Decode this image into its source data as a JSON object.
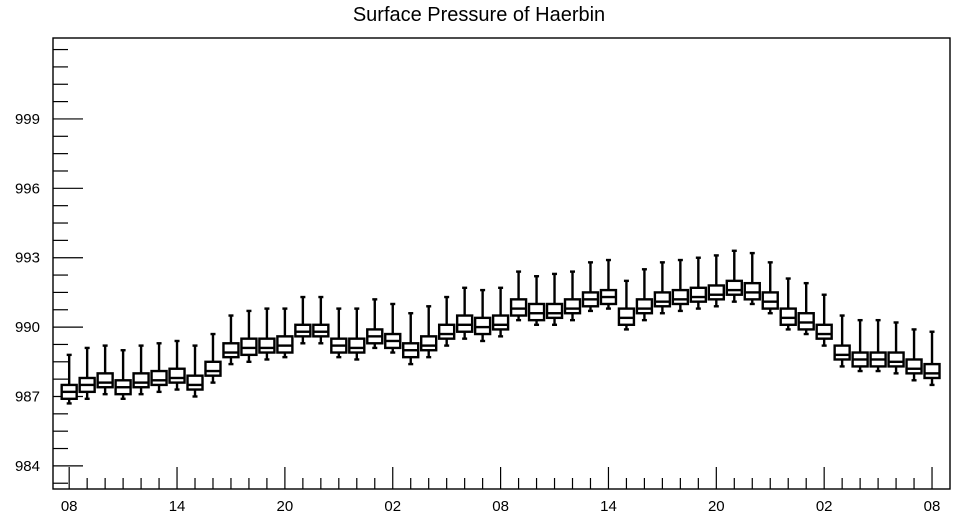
{
  "chart_data": {
    "type": "box",
    "title": "Surface Pressure of Haerbin",
    "xlabel": "",
    "ylabel": "",
    "ylim": [
      983,
      1002.5
    ],
    "y_ticks": [
      984,
      987,
      990,
      993,
      996,
      999
    ],
    "x_tick_labels": [
      "08",
      "14",
      "20",
      "02",
      "08",
      "14",
      "20",
      "02",
      "08"
    ],
    "x_tick_hours": [
      0,
      6,
      12,
      18,
      24,
      30,
      36,
      42,
      48
    ],
    "x_range_hours": [
      -0.9,
      49.0
    ],
    "grid": false,
    "legend": "none",
    "color": "#000000",
    "series": [
      {
        "values": [
          {
            "x": 0,
            "whisker_high": 988.8,
            "q3": 987.5,
            "median": 987.2,
            "q1": 986.9,
            "whisker_low": 986.7
          },
          {
            "x": 1,
            "whisker_high": 989.1,
            "q3": 987.8,
            "median": 987.5,
            "q1": 987.2,
            "whisker_low": 986.9
          },
          {
            "x": 2,
            "whisker_high": 989.2,
            "q3": 988.0,
            "median": 987.6,
            "q1": 987.4,
            "whisker_low": 987.1
          },
          {
            "x": 3,
            "whisker_high": 989.0,
            "q3": 987.7,
            "median": 987.4,
            "q1": 987.1,
            "whisker_low": 986.9
          },
          {
            "x": 4,
            "whisker_high": 989.2,
            "q3": 988.0,
            "median": 987.6,
            "q1": 987.4,
            "whisker_low": 987.1
          },
          {
            "x": 5,
            "whisker_high": 989.3,
            "q3": 988.1,
            "median": 987.7,
            "q1": 987.5,
            "whisker_low": 987.2
          },
          {
            "x": 6,
            "whisker_high": 989.4,
            "q3": 988.2,
            "median": 987.8,
            "q1": 987.6,
            "whisker_low": 987.3
          },
          {
            "x": 7,
            "whisker_high": 989.2,
            "q3": 987.9,
            "median": 987.5,
            "q1": 987.3,
            "whisker_low": 987.0
          },
          {
            "x": 8,
            "whisker_high": 989.7,
            "q3": 988.5,
            "median": 988.1,
            "q1": 987.9,
            "whisker_low": 987.6
          },
          {
            "x": 9,
            "whisker_high": 990.5,
            "q3": 989.3,
            "median": 988.9,
            "q1": 988.7,
            "whisker_low": 988.4
          },
          {
            "x": 10,
            "whisker_high": 990.7,
            "q3": 989.5,
            "median": 989.1,
            "q1": 988.8,
            "whisker_low": 988.5
          },
          {
            "x": 11,
            "whisker_high": 990.8,
            "q3": 989.5,
            "median": 989.1,
            "q1": 988.9,
            "whisker_low": 988.6
          },
          {
            "x": 12,
            "whisker_high": 990.8,
            "q3": 989.6,
            "median": 989.2,
            "q1": 988.9,
            "whisker_low": 988.7
          },
          {
            "x": 13,
            "whisker_high": 991.3,
            "q3": 990.1,
            "median": 989.8,
            "q1": 989.6,
            "whisker_low": 989.3
          },
          {
            "x": 14,
            "whisker_high": 991.3,
            "q3": 990.1,
            "median": 989.8,
            "q1": 989.6,
            "whisker_low": 989.3
          },
          {
            "x": 15,
            "whisker_high": 990.8,
            "q3": 989.5,
            "median": 989.2,
            "q1": 988.9,
            "whisker_low": 988.7
          },
          {
            "x": 16,
            "whisker_high": 990.8,
            "q3": 989.5,
            "median": 989.1,
            "q1": 988.9,
            "whisker_low": 988.6
          },
          {
            "x": 17,
            "whisker_high": 991.2,
            "q3": 989.9,
            "median": 989.6,
            "q1": 989.3,
            "whisker_low": 989.1
          },
          {
            "x": 18,
            "whisker_high": 991.0,
            "q3": 989.7,
            "median": 989.4,
            "q1": 989.1,
            "whisker_low": 988.9
          },
          {
            "x": 19,
            "whisker_high": 990.6,
            "q3": 989.3,
            "median": 989.0,
            "q1": 988.7,
            "whisker_low": 988.4
          },
          {
            "x": 20,
            "whisker_high": 990.9,
            "q3": 989.6,
            "median": 989.2,
            "q1": 989.0,
            "whisker_low": 988.7
          },
          {
            "x": 21,
            "whisker_high": 991.3,
            "q3": 990.1,
            "median": 989.7,
            "q1": 989.5,
            "whisker_low": 989.2
          },
          {
            "x": 22,
            "whisker_high": 991.7,
            "q3": 990.5,
            "median": 990.1,
            "q1": 989.8,
            "whisker_low": 989.5
          },
          {
            "x": 23,
            "whisker_high": 991.6,
            "q3": 990.4,
            "median": 990.0,
            "q1": 989.7,
            "whisker_low": 989.4
          },
          {
            "x": 24,
            "whisker_high": 991.7,
            "q3": 990.5,
            "median": 990.1,
            "q1": 989.9,
            "whisker_low": 989.6
          },
          {
            "x": 25,
            "whisker_high": 992.4,
            "q3": 991.2,
            "median": 990.8,
            "q1": 990.5,
            "whisker_low": 990.3
          },
          {
            "x": 26,
            "whisker_high": 992.2,
            "q3": 991.0,
            "median": 990.6,
            "q1": 990.3,
            "whisker_low": 990.1
          },
          {
            "x": 27,
            "whisker_high": 992.3,
            "q3": 991.0,
            "median": 990.6,
            "q1": 990.4,
            "whisker_low": 990.1
          },
          {
            "x": 28,
            "whisker_high": 992.4,
            "q3": 991.2,
            "median": 990.8,
            "q1": 990.6,
            "whisker_low": 990.3
          },
          {
            "x": 29,
            "whisker_high": 992.8,
            "q3": 991.5,
            "median": 991.2,
            "q1": 990.9,
            "whisker_low": 990.7
          },
          {
            "x": 30,
            "whisker_high": 992.9,
            "q3": 991.6,
            "median": 991.3,
            "q1": 991.0,
            "whisker_low": 990.8
          },
          {
            "x": 31,
            "whisker_high": 992.0,
            "q3": 990.8,
            "median": 990.4,
            "q1": 990.1,
            "whisker_low": 989.9
          },
          {
            "x": 32,
            "whisker_high": 992.5,
            "q3": 991.2,
            "median": 990.8,
            "q1": 990.6,
            "whisker_low": 990.3
          },
          {
            "x": 33,
            "whisker_high": 992.8,
            "q3": 991.5,
            "median": 991.1,
            "q1": 990.9,
            "whisker_low": 990.6
          },
          {
            "x": 34,
            "whisker_high": 992.9,
            "q3": 991.6,
            "median": 991.2,
            "q1": 991.0,
            "whisker_low": 990.7
          },
          {
            "x": 35,
            "whisker_high": 993.0,
            "q3": 991.7,
            "median": 991.3,
            "q1": 991.1,
            "whisker_low": 990.8
          },
          {
            "x": 36,
            "whisker_high": 993.1,
            "q3": 991.8,
            "median": 991.4,
            "q1": 991.2,
            "whisker_low": 990.9
          },
          {
            "x": 37,
            "whisker_high": 993.3,
            "q3": 992.0,
            "median": 991.6,
            "q1": 991.4,
            "whisker_low": 991.1
          },
          {
            "x": 38,
            "whisker_high": 993.2,
            "q3": 991.9,
            "median": 991.5,
            "q1": 991.2,
            "whisker_low": 991.0
          },
          {
            "x": 39,
            "whisker_high": 992.8,
            "q3": 991.5,
            "median": 991.1,
            "q1": 990.8,
            "whisker_low": 990.6
          },
          {
            "x": 40,
            "whisker_high": 992.1,
            "q3": 990.8,
            "median": 990.4,
            "q1": 990.1,
            "whisker_low": 989.9
          },
          {
            "x": 41,
            "whisker_high": 991.9,
            "q3": 990.6,
            "median": 990.2,
            "q1": 989.9,
            "whisker_low": 989.7
          },
          {
            "x": 42,
            "whisker_high": 991.4,
            "q3": 990.1,
            "median": 989.7,
            "q1": 989.5,
            "whisker_low": 989.2
          },
          {
            "x": 43,
            "whisker_high": 990.5,
            "q3": 989.2,
            "median": 988.8,
            "q1": 988.6,
            "whisker_low": 988.3
          },
          {
            "x": 44,
            "whisker_high": 990.3,
            "q3": 988.9,
            "median": 988.6,
            "q1": 988.3,
            "whisker_low": 988.1
          },
          {
            "x": 45,
            "whisker_high": 990.3,
            "q3": 988.9,
            "median": 988.6,
            "q1": 988.3,
            "whisker_low": 988.1
          },
          {
            "x": 46,
            "whisker_high": 990.2,
            "q3": 988.9,
            "median": 988.5,
            "q1": 988.3,
            "whisker_low": 988.0
          },
          {
            "x": 47,
            "whisker_high": 989.9,
            "q3": 988.6,
            "median": 988.2,
            "q1": 988.0,
            "whisker_low": 987.7
          },
          {
            "x": 48,
            "whisker_high": 989.8,
            "q3": 988.4,
            "median": 988.0,
            "q1": 987.8,
            "whisker_low": 987.5
          }
        ]
      }
    ]
  }
}
